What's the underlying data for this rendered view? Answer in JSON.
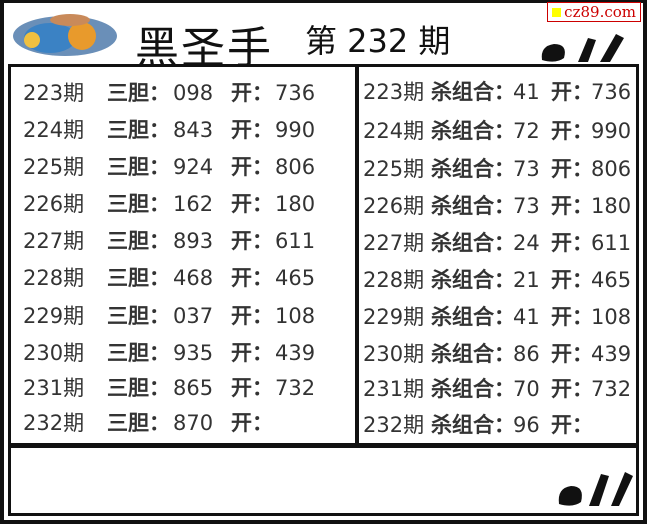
{
  "header": {
    "title": "黑圣手",
    "issue": "第 232 期",
    "watermark": "cz89.com"
  },
  "left": {
    "label": "三胆：",
    "open": "开：",
    "rows": [
      {
        "period": "223期",
        "value": "098",
        "result": "736"
      },
      {
        "period": "224期",
        "value": "843",
        "result": "990"
      },
      {
        "period": "225期",
        "value": "924",
        "result": "806"
      },
      {
        "period": "226期",
        "value": "162",
        "result": "180"
      },
      {
        "period": "227期",
        "value": "893",
        "result": "611"
      },
      {
        "period": "228期",
        "value": "468",
        "result": "465"
      },
      {
        "period": "229期",
        "value": "037",
        "result": "108"
      },
      {
        "period": "230期",
        "value": "935",
        "result": "439"
      },
      {
        "period": "231期",
        "value": "865",
        "result": "732"
      },
      {
        "period": "232期",
        "value": "870",
        "result": ""
      }
    ]
  },
  "right": {
    "label": "杀组合：",
    "open": "开：",
    "rows": [
      {
        "period": "223期",
        "value": "41",
        "result": "736"
      },
      {
        "period": "224期",
        "value": "72",
        "result": "990"
      },
      {
        "period": "225期",
        "value": "73",
        "result": "806"
      },
      {
        "period": "226期",
        "value": "73",
        "result": "180"
      },
      {
        "period": "227期",
        "value": "24",
        "result": "611"
      },
      {
        "period": "228期",
        "value": "21",
        "result": "465"
      },
      {
        "period": "229期",
        "value": "41",
        "result": "108"
      },
      {
        "period": "230期",
        "value": "86",
        "result": "439"
      },
      {
        "period": "231期",
        "value": "70",
        "result": "732"
      },
      {
        "period": "232期",
        "value": "96",
        "result": ""
      }
    ]
  }
}
